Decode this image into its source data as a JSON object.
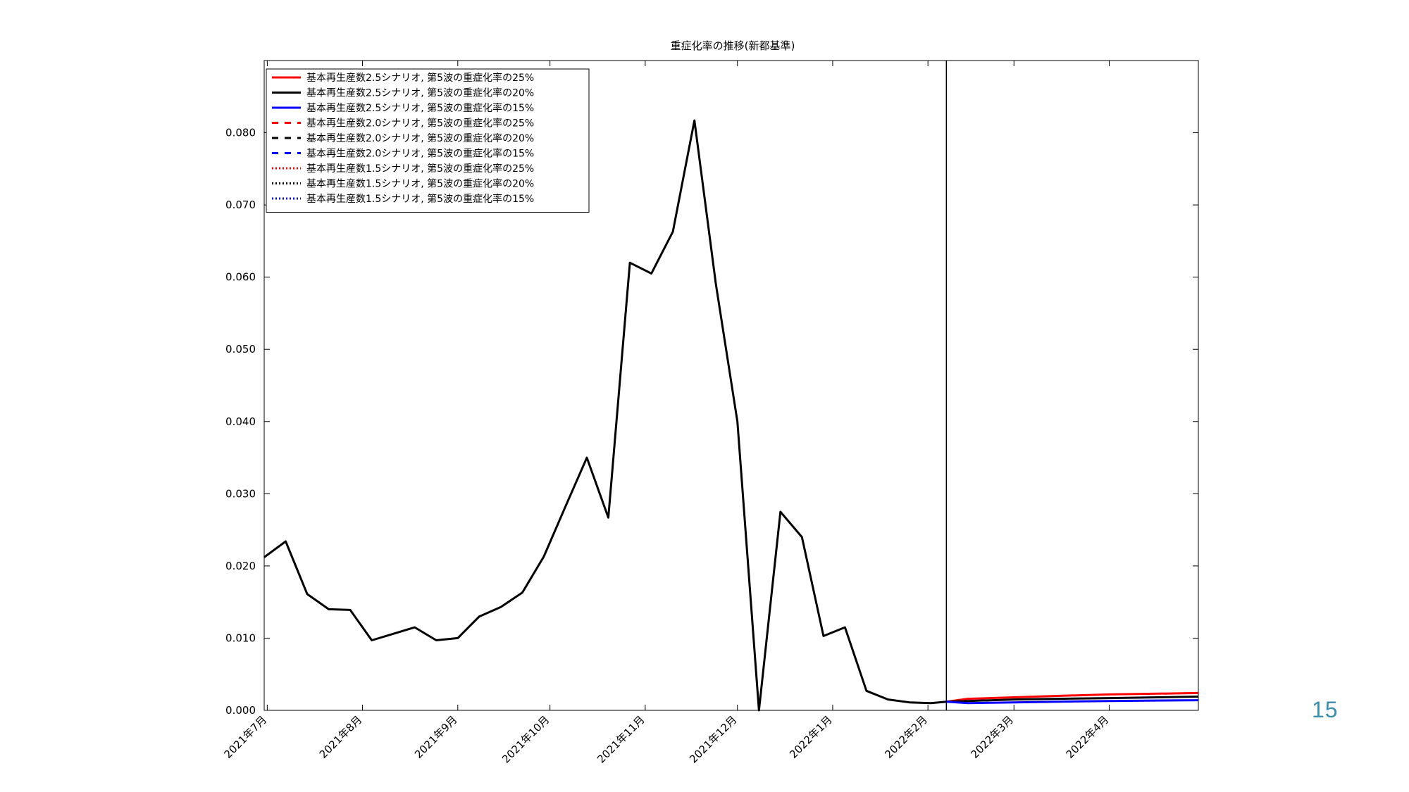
{
  "page_number": "15",
  "chart_data": {
    "type": "line",
    "title": "重症化率の推移(新都基準)",
    "xlabel": "",
    "ylabel": "",
    "ylim": [
      0,
      0.09
    ],
    "yticks": [
      "0.000",
      "0.010",
      "0.020",
      "0.030",
      "0.040",
      "0.050",
      "0.060",
      "0.070",
      "0.080"
    ],
    "xlim": [
      "2021-06-30",
      "2022-04-30"
    ],
    "xticks": [
      {
        "date": "2021-07-01",
        "label": "2021年7月"
      },
      {
        "date": "2021-08-01",
        "label": "2021年8月"
      },
      {
        "date": "2021-09-01",
        "label": "2021年9月"
      },
      {
        "date": "2021-10-01",
        "label": "2021年10月"
      },
      {
        "date": "2021-11-01",
        "label": "2021年11月"
      },
      {
        "date": "2021-12-01",
        "label": "2021年12月"
      },
      {
        "date": "2022-01-01",
        "label": "2022年1月"
      },
      {
        "date": "2022-02-01",
        "label": "2022年2月"
      },
      {
        "date": "2022-03-01",
        "label": "2022年3月"
      },
      {
        "date": "2022-04-01",
        "label": "2022年4月"
      }
    ],
    "vline": "2022-02-07",
    "grid": false,
    "legend_position": "top-left",
    "legend": [
      {
        "label": "基本再生産数2.5シナリオ, 第5波の重症化率の25%",
        "color": "#ff0000",
        "style": "solid"
      },
      {
        "label": "基本再生産数2.5シナリオ, 第5波の重症化率の20%",
        "color": "#000000",
        "style": "solid"
      },
      {
        "label": "基本再生産数2.5シナリオ, 第5波の重症化率の15%",
        "color": "#0000ff",
        "style": "solid"
      },
      {
        "label": "基本再生産数2.0シナリオ, 第5波の重症化率の25%",
        "color": "#ff0000",
        "style": "dashed"
      },
      {
        "label": "基本再生産数2.0シナリオ, 第5波の重症化率の20%",
        "color": "#000000",
        "style": "dashed"
      },
      {
        "label": "基本再生産数2.0シナリオ, 第5波の重症化率の15%",
        "color": "#0000ff",
        "style": "dashed"
      },
      {
        "label": "基本再生産数1.5シナリオ, 第5波の重症化率の25%",
        "color": "#ff0000",
        "style": "dotted"
      },
      {
        "label": "基本再生産数1.5シナリオ, 第5波の重症化率の20%",
        "color": "#000000",
        "style": "dotted"
      },
      {
        "label": "基本再生産数1.5シナリオ, 第5波の重症化率の15%",
        "color": "#0000ff",
        "style": "dotted"
      }
    ],
    "observed": {
      "color": "#000000",
      "points": [
        [
          "2021-06-30",
          0.0212
        ],
        [
          "2021-07-07",
          0.0234
        ],
        [
          "2021-07-14",
          0.0161
        ],
        [
          "2021-07-21",
          0.014
        ],
        [
          "2021-07-28",
          0.0139
        ],
        [
          "2021-08-04",
          0.0097
        ],
        [
          "2021-08-11",
          0.0106
        ],
        [
          "2021-08-18",
          0.0115
        ],
        [
          "2021-08-25",
          0.0097
        ],
        [
          "2021-09-01",
          0.01
        ],
        [
          "2021-09-08",
          0.013
        ],
        [
          "2021-09-15",
          0.0143
        ],
        [
          "2021-09-22",
          0.0163
        ],
        [
          "2021-09-29",
          0.0213
        ],
        [
          "2021-10-06",
          0.0282
        ],
        [
          "2021-10-13",
          0.035
        ],
        [
          "2021-10-20",
          0.0267
        ],
        [
          "2021-10-27",
          0.062
        ],
        [
          "2021-11-03",
          0.0605
        ],
        [
          "2021-11-10",
          0.0663
        ],
        [
          "2021-11-17",
          0.0817
        ],
        [
          "2021-11-24",
          0.059
        ],
        [
          "2021-12-01",
          0.04
        ],
        [
          "2021-12-08",
          0.0
        ],
        [
          "2021-12-15",
          0.0275
        ],
        [
          "2021-12-22",
          0.024
        ],
        [
          "2021-12-29",
          0.0103
        ],
        [
          "2022-01-05",
          0.0115
        ],
        [
          "2022-01-12",
          0.0027
        ],
        [
          "2022-01-19",
          0.0015
        ],
        [
          "2022-01-26",
          0.0011
        ],
        [
          "2022-02-02",
          0.001
        ],
        [
          "2022-02-07",
          0.0012
        ]
      ]
    },
    "series": [
      {
        "color": "#ff0000",
        "points": [
          [
            "2022-02-07",
            0.0012
          ],
          [
            "2022-02-14",
            0.0016
          ],
          [
            "2022-03-01",
            0.0018
          ],
          [
            "2022-03-15",
            0.002
          ],
          [
            "2022-04-01",
            0.0022
          ],
          [
            "2022-04-30",
            0.0024
          ]
        ]
      },
      {
        "color": "#000000",
        "points": [
          [
            "2022-02-07",
            0.0012
          ],
          [
            "2022-02-14",
            0.0013
          ],
          [
            "2022-03-01",
            0.0015
          ],
          [
            "2022-03-15",
            0.0016
          ],
          [
            "2022-04-01",
            0.0017
          ],
          [
            "2022-04-30",
            0.0019
          ]
        ]
      },
      {
        "color": "#0000ff",
        "points": [
          [
            "2022-02-07",
            0.0012
          ],
          [
            "2022-02-14",
            0.001
          ],
          [
            "2022-03-01",
            0.0011
          ],
          [
            "2022-03-15",
            0.0012
          ],
          [
            "2022-04-01",
            0.0013
          ],
          [
            "2022-04-30",
            0.0014
          ]
        ]
      }
    ]
  }
}
